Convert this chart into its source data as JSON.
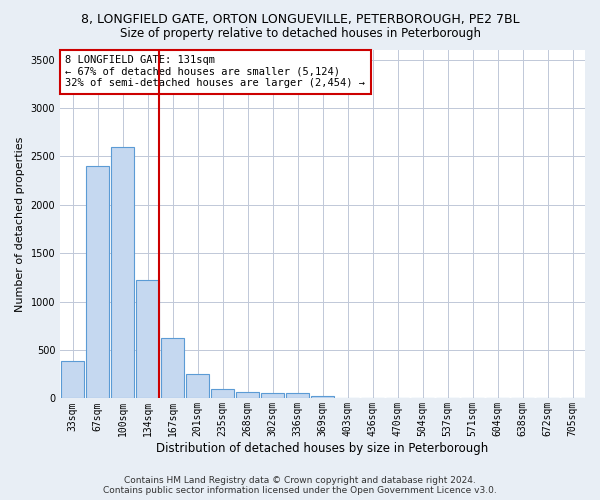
{
  "title_line1": "8, LONGFIELD GATE, ORTON LONGUEVILLE, PETERBOROUGH, PE2 7BL",
  "title_line2": "Size of property relative to detached houses in Peterborough",
  "xlabel": "Distribution of detached houses by size in Peterborough",
  "ylabel": "Number of detached properties",
  "footer_line1": "Contains HM Land Registry data © Crown copyright and database right 2024.",
  "footer_line2": "Contains public sector information licensed under the Open Government Licence v3.0.",
  "categories": [
    "33sqm",
    "67sqm",
    "100sqm",
    "134sqm",
    "167sqm",
    "201sqm",
    "235sqm",
    "268sqm",
    "302sqm",
    "336sqm",
    "369sqm",
    "403sqm",
    "436sqm",
    "470sqm",
    "504sqm",
    "537sqm",
    "571sqm",
    "604sqm",
    "638sqm",
    "672sqm",
    "705sqm"
  ],
  "values": [
    390,
    2400,
    2600,
    1220,
    620,
    250,
    100,
    65,
    60,
    55,
    30,
    0,
    0,
    0,
    0,
    0,
    0,
    0,
    0,
    0,
    0
  ],
  "bar_color": "#c5d8f0",
  "bar_edge_color": "#5b9bd5",
  "vline_color": "#cc0000",
  "vline_x_index": 3,
  "annotation_line1": "8 LONGFIELD GATE: 131sqm",
  "annotation_line2": "← 67% of detached houses are smaller (5,124)",
  "annotation_line3": "32% of semi-detached houses are larger (2,454) →",
  "annotation_box_color": "white",
  "annotation_box_edge_color": "#cc0000",
  "ylim": [
    0,
    3600
  ],
  "yticks": [
    0,
    500,
    1000,
    1500,
    2000,
    2500,
    3000,
    3500
  ],
  "background_color": "#e8eef5",
  "plot_bg_color": "#ffffff",
  "grid_color": "#c0c8d8",
  "title1_fontsize": 9,
  "title2_fontsize": 8.5,
  "xlabel_fontsize": 8.5,
  "ylabel_fontsize": 8,
  "tick_fontsize": 7,
  "footer_fontsize": 6.5,
  "annotation_fontsize": 7.5
}
